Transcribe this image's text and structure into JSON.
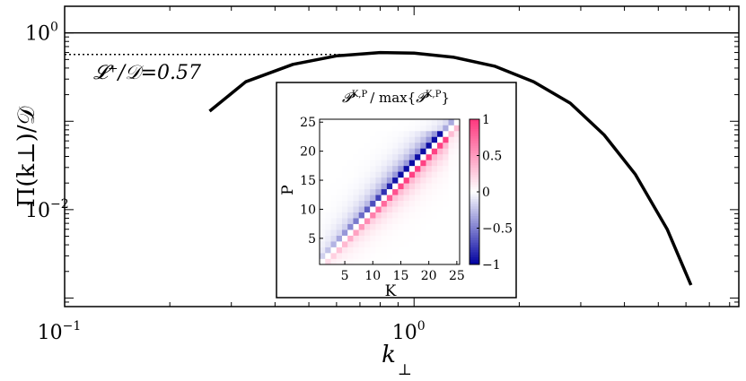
{
  "chart_data": [
    {
      "type": "line",
      "title": "",
      "xlabel": "k",
      "xlabel_sub": "⊥",
      "ylabel": "Π(k⊥)/𝒟",
      "xscale": "log",
      "yscale": "log",
      "xlim": [
        0.1,
        8.5
      ],
      "ylim": [
        0.0008,
        2.0
      ],
      "x_ticks": [
        {
          "base": "10",
          "exp": "−1",
          "value": 0.1
        },
        {
          "base": "10",
          "exp": "0",
          "value": 1
        }
      ],
      "y_ticks": [
        {
          "base": "10",
          "exp": "−2",
          "value": 0.01
        },
        {
          "base": "10",
          "exp": "0",
          "value": 1
        }
      ],
      "reference_line": {
        "y": 1.0,
        "style": "solid"
      },
      "annotation": {
        "text": "𝓛⁺/𝒟=0.57",
        "y": 0.57,
        "style": "dotted",
        "x_end": 0.62
      },
      "series": [
        {
          "x": [
            0.26,
            0.33,
            0.45,
            0.6,
            0.8,
            1.0,
            1.3,
            1.7,
            2.2,
            2.8,
            3.5,
            4.3,
            5.3,
            6.2
          ],
          "values": [
            0.13,
            0.28,
            0.44,
            0.55,
            0.6,
            0.59,
            0.53,
            0.42,
            0.28,
            0.16,
            0.07,
            0.025,
            0.006,
            0.0014
          ]
        }
      ]
    },
    {
      "type": "heatmap",
      "title": "𝓟 K,P / max{𝓟 K,P}",
      "title_parts": {
        "a": "𝓟",
        "a_sup": "K,P",
        "b": "/ max{",
        "c": "𝓟",
        "c_sup": "K,P",
        "d": "}"
      },
      "xlabel": "K",
      "ylabel": "P",
      "grid_size": 25,
      "x_ticks": [
        5,
        10,
        15,
        20,
        25
      ],
      "y_ticks": [
        5,
        10,
        15,
        20,
        25
      ],
      "colorbar": {
        "range": [
          -1,
          1
        ],
        "ticks": [
          1,
          0.5,
          0,
          -0.5,
          -1
        ],
        "tick_labels": [
          "1",
          "0.5",
          "0",
          "−0.5",
          "−1"
        ]
      },
      "pattern": "antisymmetric transfer: negative (blue) one step above the diagonal, positive (pink) one step below, fading away from the diagonal"
    }
  ]
}
